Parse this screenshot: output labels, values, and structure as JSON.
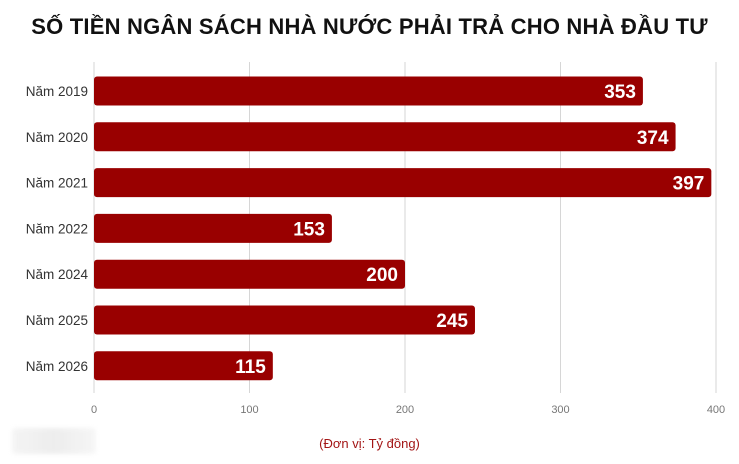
{
  "chart_data": {
    "type": "bar",
    "orientation": "horizontal",
    "title": "SỐ TIỀN NGÂN SÁCH NHÀ NƯỚC PHẢI TRẢ CHO NHÀ ĐẦU TƯ",
    "categories": [
      "Năm 2019",
      "Năm 2020",
      "Năm 2021",
      "Năm 2022",
      "Năm 2024",
      "Năm 2025",
      "Năm 2026"
    ],
    "values": [
      353,
      374,
      397,
      153,
      200,
      245,
      115
    ],
    "data_labels": [
      "353",
      "374",
      "397",
      "153",
      "200",
      "245",
      "115"
    ],
    "xlim": [
      0,
      400
    ],
    "x_ticks": [
      0,
      100,
      200,
      300,
      400
    ],
    "x_tick_labels": [
      "0",
      "100",
      "200",
      "300",
      "400"
    ],
    "grid": true,
    "bar_color": "#990000",
    "unit_note": "(Đơn vị: Tỷ đồng)"
  }
}
